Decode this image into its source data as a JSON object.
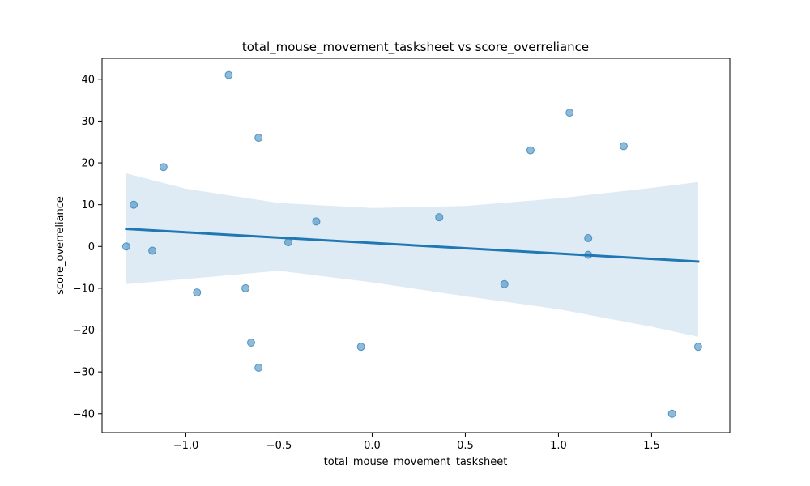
{
  "chart_data": {
    "type": "scatter",
    "title": "total_mouse_movement_tasksheet vs score_overreliance",
    "xlabel": "total_mouse_movement_tasksheet",
    "ylabel": "score_overreliance",
    "xlim": [
      -1.45,
      1.92
    ],
    "ylim": [
      -44.5,
      45
    ],
    "xticks": [
      -1.0,
      -0.5,
      0.0,
      0.5,
      1.0,
      1.5
    ],
    "xtick_labels": [
      "−1.0",
      "−0.5",
      "0.0",
      "0.5",
      "1.0",
      "1.5"
    ],
    "yticks": [
      -40,
      -30,
      -20,
      -10,
      0,
      10,
      20,
      30,
      40
    ],
    "ytick_labels": [
      "−40",
      "−30",
      "−20",
      "−10",
      "0",
      "10",
      "20",
      "30",
      "40"
    ],
    "grid": false,
    "legend": "none",
    "points": [
      {
        "x": -1.32,
        "y": 0
      },
      {
        "x": -1.28,
        "y": 10
      },
      {
        "x": -1.18,
        "y": -1
      },
      {
        "x": -1.12,
        "y": 19
      },
      {
        "x": -0.94,
        "y": -11
      },
      {
        "x": -0.77,
        "y": 41
      },
      {
        "x": -0.68,
        "y": -10
      },
      {
        "x": -0.65,
        "y": -23
      },
      {
        "x": -0.61,
        "y": 26
      },
      {
        "x": -0.61,
        "y": -29
      },
      {
        "x": -0.45,
        "y": 1
      },
      {
        "x": -0.3,
        "y": 6
      },
      {
        "x": -0.06,
        "y": -24
      },
      {
        "x": 0.36,
        "y": 7
      },
      {
        "x": 0.71,
        "y": -9
      },
      {
        "x": 0.85,
        "y": 23
      },
      {
        "x": 1.06,
        "y": 32
      },
      {
        "x": 1.16,
        "y": 2
      },
      {
        "x": 1.16,
        "y": -2
      },
      {
        "x": 1.35,
        "y": 24
      },
      {
        "x": 1.61,
        "y": -40
      },
      {
        "x": 1.75,
        "y": -24
      }
    ],
    "regression": {
      "x": [
        -1.32,
        1.75
      ],
      "y": [
        4.2,
        -3.6
      ]
    },
    "confidence_band": {
      "x": [
        -1.32,
        -1.0,
        -0.5,
        0.0,
        0.5,
        1.0,
        1.5,
        1.75
      ],
      "upper": [
        17.5,
        13.8,
        10.4,
        9.2,
        9.7,
        11.5,
        14.0,
        15.4
      ],
      "lower": [
        -9.0,
        -7.8,
        -5.8,
        -8.6,
        -11.9,
        -15.0,
        -19.2,
        -21.6
      ]
    },
    "colors": {
      "points": "#1f77b4",
      "line": "#1f77b4",
      "band": "#1f77b4"
    }
  }
}
